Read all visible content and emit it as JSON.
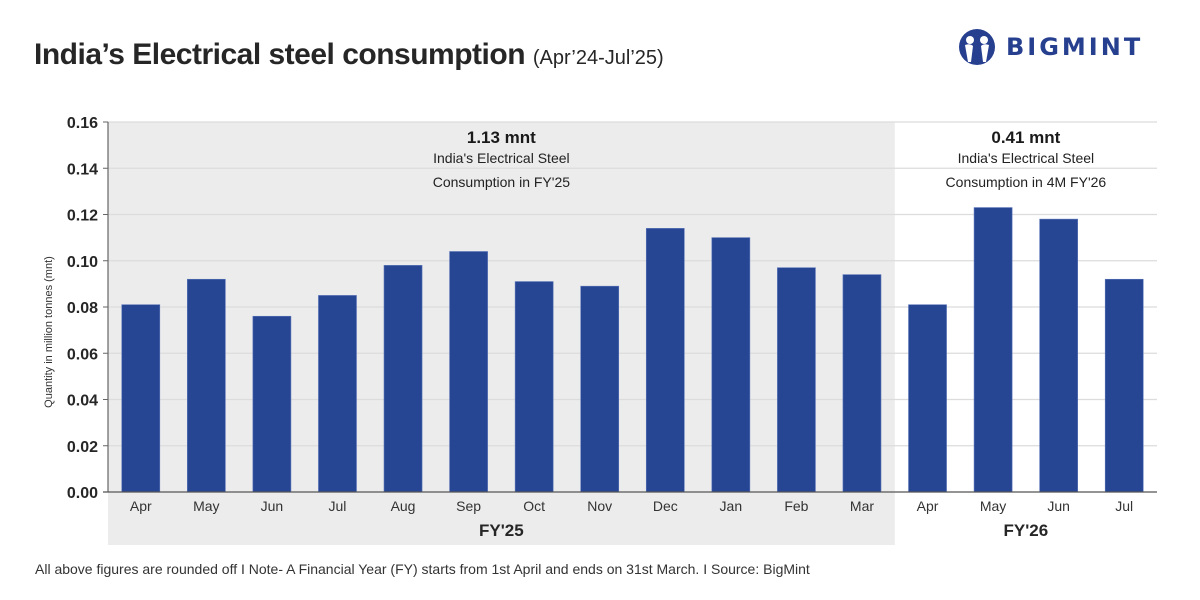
{
  "header": {
    "title": "India’s Electrical steel consumption",
    "subtitle": "(Apr’24-Jul’25)"
  },
  "logo": {
    "text": "BIGMINT",
    "icon": "bigmint-people-icon",
    "color": "#263f8f"
  },
  "footer": {
    "note": "All above figures are rounded off  I  Note- A Financial Year (FY) starts from 1st April and ends on 31st March.  I  Source: BigMint"
  },
  "chart_data": {
    "type": "bar",
    "title": "India’s Electrical steel consumption (Apr’24-Jul’25)",
    "xlabel": "",
    "ylabel": "Quantity in million tonnes (mnt)",
    "ylim": [
      0,
      0.16
    ],
    "yticks": [
      "0.00",
      "0.02",
      "0.04",
      "0.06",
      "0.08",
      "0.10",
      "0.12",
      "0.14",
      "0.16"
    ],
    "grid": true,
    "bar_color": "#264694",
    "categories": [
      "Apr",
      "May",
      "Jun",
      "Jul",
      "Aug",
      "Sep",
      "Oct",
      "Nov",
      "Dec",
      "Jan",
      "Feb",
      "Mar",
      "Apr",
      "May",
      "Jun",
      "Jul"
    ],
    "values": [
      0.081,
      0.092,
      0.076,
      0.085,
      0.098,
      0.104,
      0.091,
      0.089,
      0.114,
      0.11,
      0.097,
      0.094,
      0.081,
      0.123,
      0.118,
      0.092
    ],
    "groups": [
      {
        "label": "FY'25",
        "start": 0,
        "count": 12,
        "shaded": true,
        "shade_color": "#ebeceb",
        "annotation": {
          "value": "1.13 mnt",
          "line1": "India's Electrical Steel",
          "line2": "Consumption in FY'25"
        }
      },
      {
        "label": "FY'26",
        "start": 12,
        "count": 4,
        "shaded": false,
        "annotation": {
          "value": "0.41 mnt",
          "line1": "India's Electrical Steel",
          "line2": "Consumption in 4M FY'26"
        }
      }
    ]
  }
}
